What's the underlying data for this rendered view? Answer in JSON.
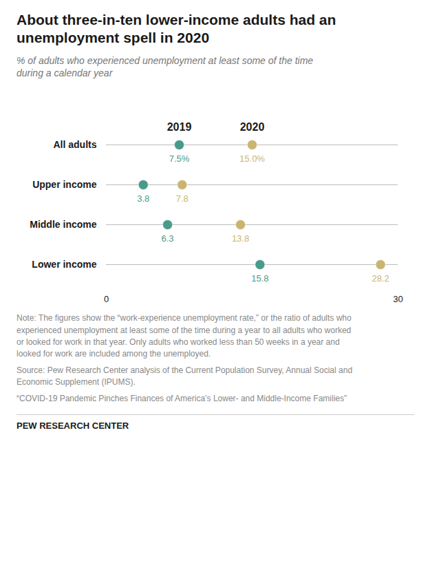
{
  "chart_data": {
    "type": "dot",
    "title": "About three-in-ten lower-income adults had an unemployment spell in 2020",
    "subtitle": "% of adults who experienced unemployment at least some of the time during a calendar year",
    "categories": [
      "All adults",
      "Upper income",
      "Middle income",
      "Lower income"
    ],
    "series": [
      {
        "name": "2019",
        "color": "#4a9a8a",
        "values": [
          7.5,
          3.8,
          6.3,
          15.8
        ],
        "value_labels": [
          "7.5%",
          "3.8",
          "6.3",
          "15.8"
        ]
      },
      {
        "name": "2020",
        "color": "#c9b570",
        "values": [
          15.0,
          7.8,
          13.8,
          28.2
        ],
        "value_labels": [
          "15.0%",
          "7.8",
          "13.8",
          "28.2"
        ]
      }
    ],
    "xlim": [
      0,
      30
    ],
    "xticks": [
      0,
      30
    ],
    "grid": false,
    "data_labels": true,
    "note": "Note: The figures show the “work-experience unemployment rate,” or the ratio of adults who experienced unemployment at least some of the time during a year to all adults who worked or looked for work in that year. Only adults who worked less than 50 weeks in a year and looked for work are included among the unemployed.",
    "source": "Source: Pew Research Center analysis of the Current Population Survey, Annual Social and Economic Supplement (IPUMS).",
    "report": "“COVID-19 Pandemic Pinches Finances of America’s Lower- and Middle-Income Families”",
    "footer": "PEW RESEARCH CENTER"
  }
}
